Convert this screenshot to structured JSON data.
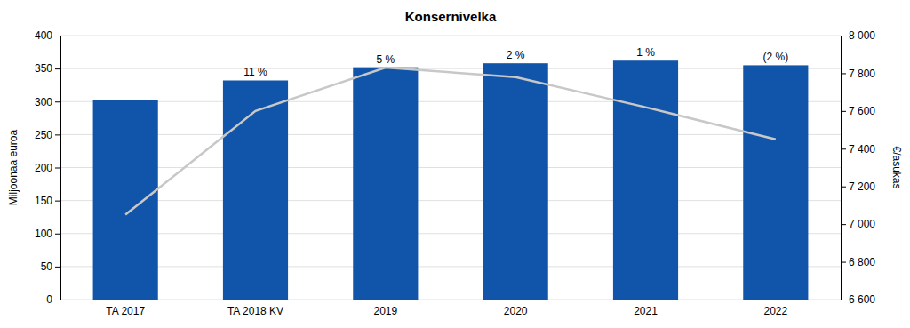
{
  "chart_data": {
    "type": "bar",
    "title": "Konsernivelka",
    "categories": [
      "TA 2017",
      "TA 2018 KV",
      "2019",
      "2020",
      "2021",
      "2022"
    ],
    "series": [
      {
        "type": "bar",
        "color": "#1155aa",
        "values": [
          302,
          332,
          352,
          358,
          362,
          355
        ],
        "annotations": [
          null,
          "11 %",
          "5 %",
          "2 %",
          "1 %",
          "(2 %)"
        ]
      },
      {
        "type": "line",
        "axis": "y2",
        "color": "#c8c8c8",
        "values": [
          7050,
          7600,
          7830,
          7780,
          7620,
          7450
        ]
      }
    ],
    "ylabel": "Miljoonaa euroa",
    "y2label": "€/asukas",
    "ylim": [
      0,
      400
    ],
    "yticks": [
      0,
      50,
      100,
      150,
      200,
      250,
      300,
      350,
      400
    ],
    "y2lim": [
      6600,
      8000
    ],
    "y2ticks": [
      {
        "value": 6600,
        "label": "6 600"
      },
      {
        "value": 6800,
        "label": "6 800"
      },
      {
        "value": 7000,
        "label": "7 000"
      },
      {
        "value": 7200,
        "label": "7 200"
      },
      {
        "value": 7400,
        "label": "7 400"
      },
      {
        "value": 7600,
        "label": "7 600"
      },
      {
        "value": 7800,
        "label": "7 800"
      },
      {
        "value": 8000,
        "label": "8 000"
      }
    ],
    "grid": true
  }
}
